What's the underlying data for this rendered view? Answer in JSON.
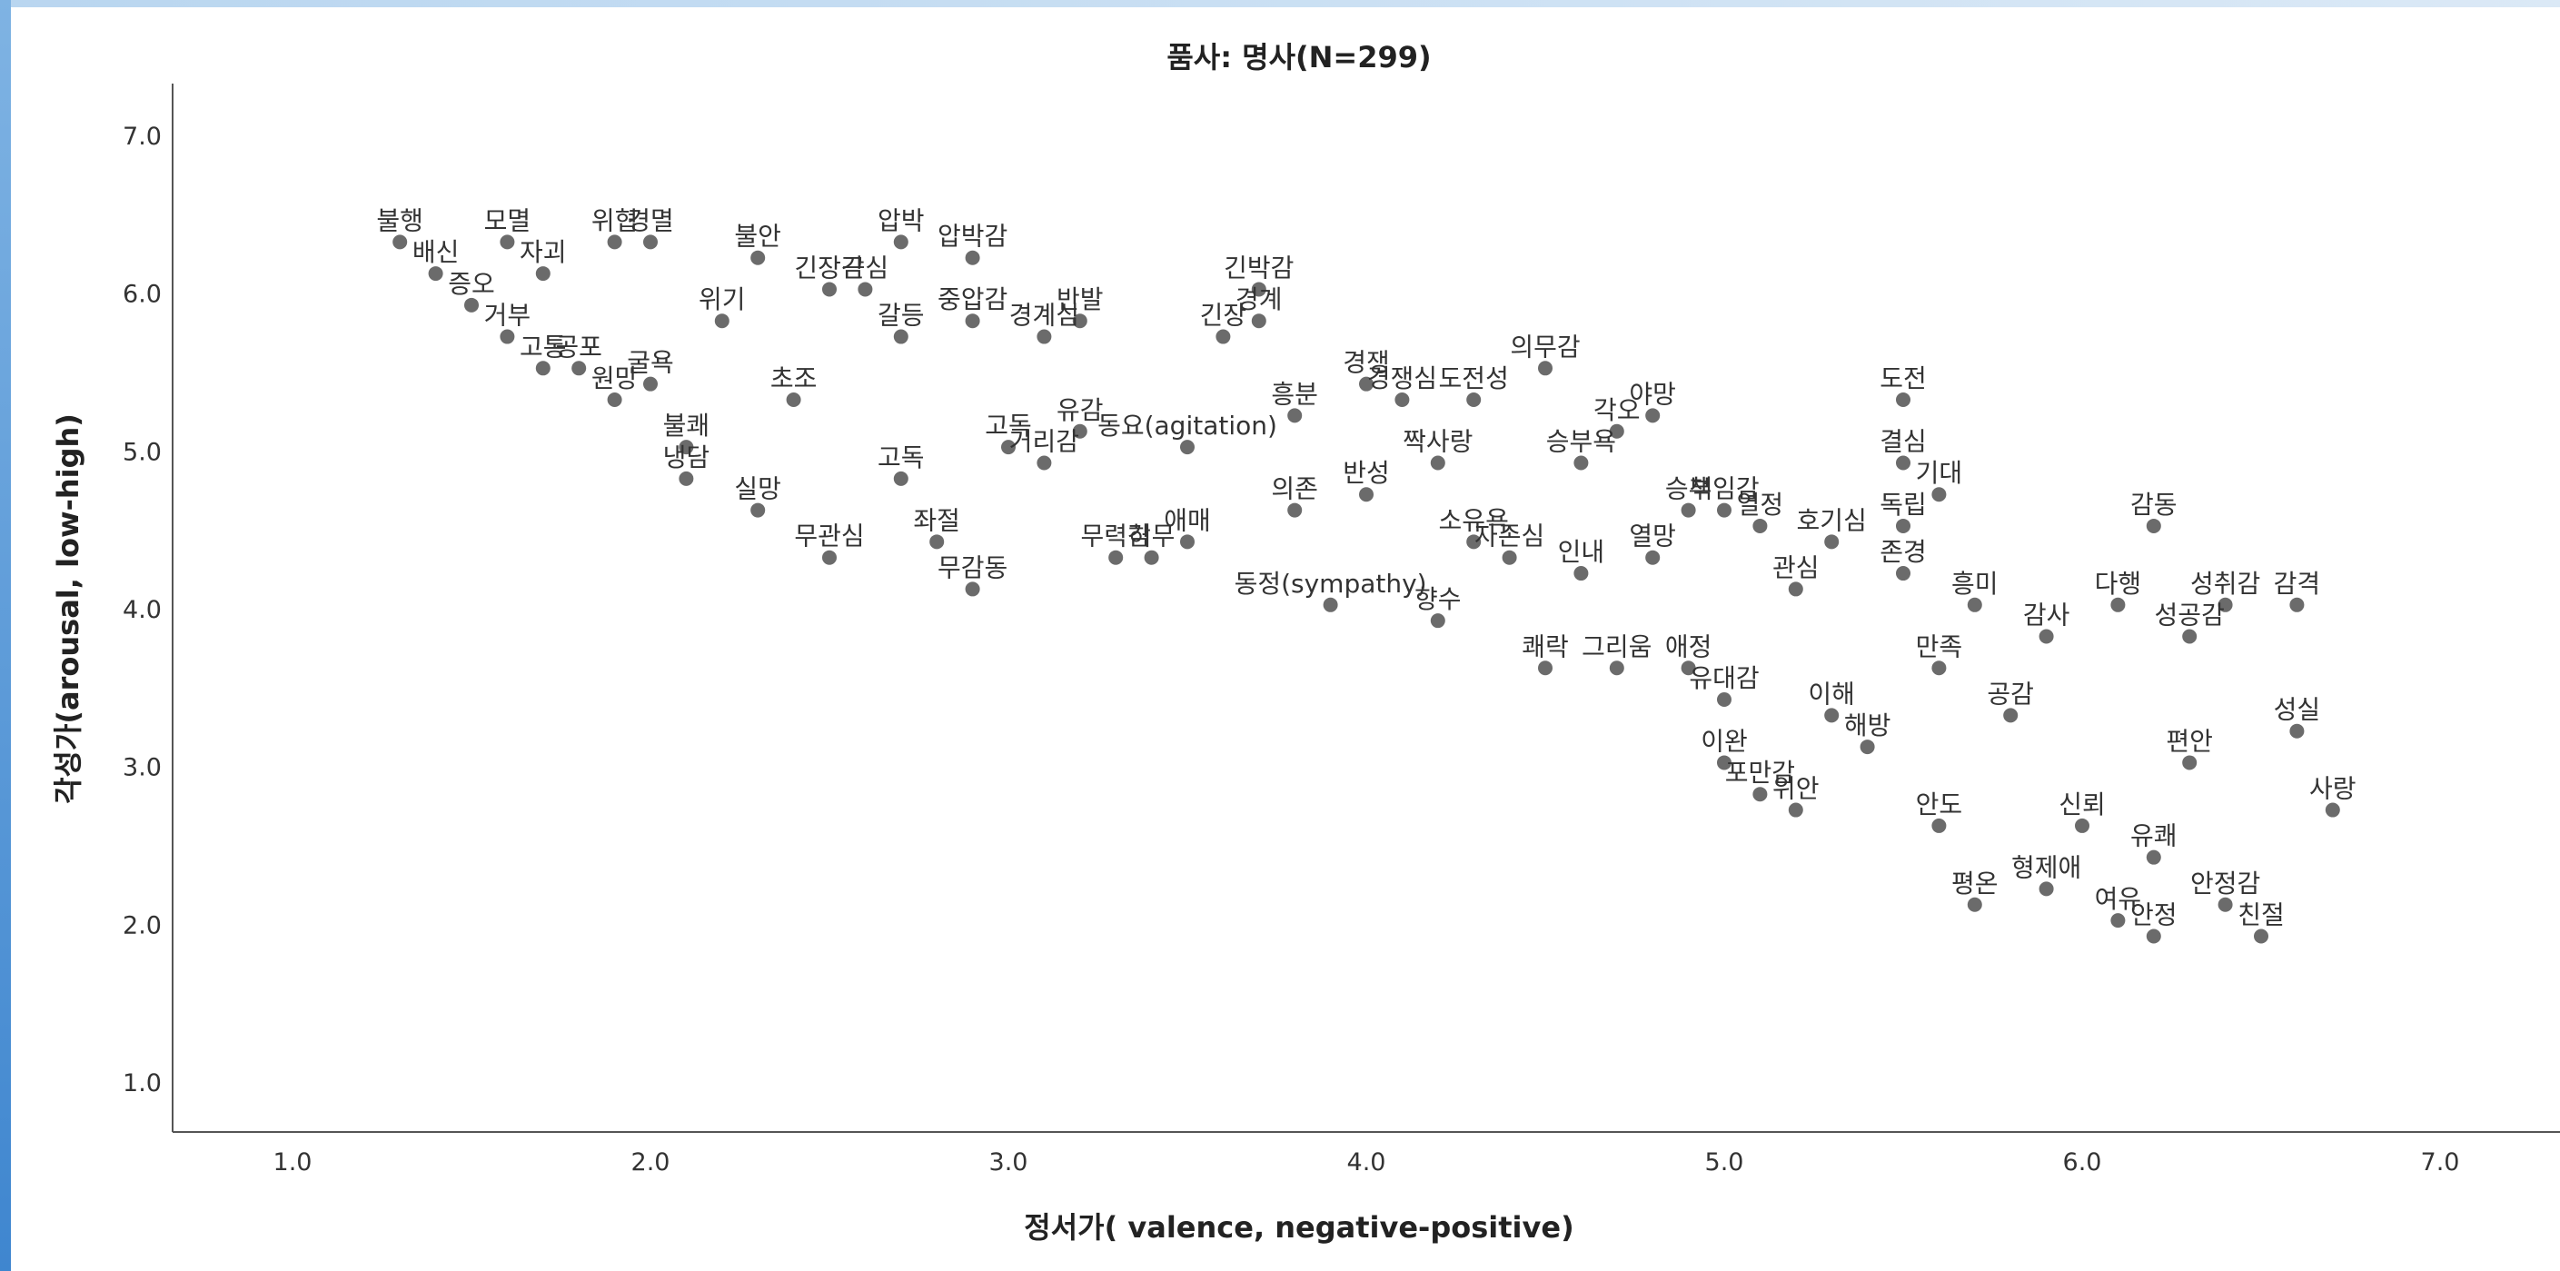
{
  "chart_data": {
    "type": "scatter",
    "title": "품사: 명사(N=299)",
    "xlabel": "정서가( valence, negative-positive)",
    "ylabel": "각성가(arousal, low-high)",
    "xlim": [
      0.67,
      7.61
    ],
    "ylim": [
      0.67,
      7.33
    ],
    "xticks": [
      "1.0",
      "2.0",
      "3.0",
      "4.0",
      "5.0",
      "6.0",
      "7.0"
    ],
    "yticks": [
      "1.0",
      "2.0",
      "3.0",
      "4.0",
      "5.0",
      "6.0",
      "7.0"
    ],
    "marker_color": "#6b6b6b",
    "grid": false,
    "points": [
      {
        "x": 1.3,
        "y": 6.33,
        "label": "불행"
      },
      {
        "x": 1.4,
        "y": 6.13,
        "label": "배신"
      },
      {
        "x": 1.5,
        "y": 5.93,
        "label": "증오"
      },
      {
        "x": 1.6,
        "y": 5.73,
        "label": "거부"
      },
      {
        "x": 1.6,
        "y": 6.33,
        "label": "모멸"
      },
      {
        "x": 1.7,
        "y": 6.13,
        "label": "자괴"
      },
      {
        "x": 1.7,
        "y": 5.53,
        "label": "고통"
      },
      {
        "x": 1.8,
        "y": 5.53,
        "label": "공포"
      },
      {
        "x": 1.9,
        "y": 6.33,
        "label": "위협"
      },
      {
        "x": 1.9,
        "y": 5.33,
        "label": "원망"
      },
      {
        "x": 2.0,
        "y": 6.33,
        "label": "경멸"
      },
      {
        "x": 2.0,
        "y": 5.43,
        "label": "굴욕"
      },
      {
        "x": 2.1,
        "y": 5.03,
        "label": "불쾌"
      },
      {
        "x": 2.1,
        "y": 4.83,
        "label": "냉담"
      },
      {
        "x": 2.2,
        "y": 5.83,
        "label": "위기"
      },
      {
        "x": 2.3,
        "y": 6.23,
        "label": "불안"
      },
      {
        "x": 2.3,
        "y": 4.63,
        "label": "실망"
      },
      {
        "x": 2.4,
        "y": 5.33,
        "label": "초조"
      },
      {
        "x": 2.5,
        "y": 6.03,
        "label": "긴장감"
      },
      {
        "x": 2.5,
        "y": 4.33,
        "label": "무관심"
      },
      {
        "x": 2.6,
        "y": 6.03,
        "label": "근심"
      },
      {
        "x": 2.7,
        "y": 5.73,
        "label": "갈등"
      },
      {
        "x": 2.7,
        "y": 4.83,
        "label": "고독"
      },
      {
        "x": 2.7,
        "y": 6.33,
        "label": "압박"
      },
      {
        "x": 2.8,
        "y": 4.43,
        "label": "좌절"
      },
      {
        "x": 2.9,
        "y": 6.23,
        "label": "압박감"
      },
      {
        "x": 2.9,
        "y": 4.13,
        "label": "무감동"
      },
      {
        "x": 2.9,
        "y": 5.83,
        "label": "중압감"
      },
      {
        "x": 3.0,
        "y": 5.03,
        "label": "고독"
      },
      {
        "x": 3.1,
        "y": 4.93,
        "label": "거리감"
      },
      {
        "x": 3.1,
        "y": 5.73,
        "label": "경계심"
      },
      {
        "x": 3.2,
        "y": 5.13,
        "label": "유감"
      },
      {
        "x": 3.2,
        "y": 5.83,
        "label": "반발"
      },
      {
        "x": 3.3,
        "y": 4.33,
        "label": "무력감"
      },
      {
        "x": 3.4,
        "y": 4.33,
        "label": "허무"
      },
      {
        "x": 3.5,
        "y": 4.43,
        "label": "애매"
      },
      {
        "x": 3.5,
        "y": 5.03,
        "label": "동요(agitation)"
      },
      {
        "x": 3.6,
        "y": 5.73,
        "label": "긴장"
      },
      {
        "x": 3.7,
        "y": 5.83,
        "label": "경계"
      },
      {
        "x": 3.7,
        "y": 6.03,
        "label": "긴박감"
      },
      {
        "x": 3.8,
        "y": 5.23,
        "label": "흥분"
      },
      {
        "x": 3.8,
        "y": 4.63,
        "label": "의존"
      },
      {
        "x": 3.9,
        "y": 4.03,
        "label": "동정(sympathy)"
      },
      {
        "x": 4.0,
        "y": 4.73,
        "label": "반성"
      },
      {
        "x": 4.0,
        "y": 5.43,
        "label": "경쟁"
      },
      {
        "x": 4.1,
        "y": 5.33,
        "label": "경쟁심"
      },
      {
        "x": 4.2,
        "y": 4.93,
        "label": "짝사랑"
      },
      {
        "x": 4.2,
        "y": 3.93,
        "label": "향수"
      },
      {
        "x": 4.3,
        "y": 5.33,
        "label": "도전성"
      },
      {
        "x": 4.3,
        "y": 4.43,
        "label": "소유욕"
      },
      {
        "x": 4.4,
        "y": 4.33,
        "label": "자존심"
      },
      {
        "x": 4.5,
        "y": 5.53,
        "label": "의무감"
      },
      {
        "x": 4.5,
        "y": 3.63,
        "label": "쾌락"
      },
      {
        "x": 4.6,
        "y": 4.93,
        "label": "승부욕"
      },
      {
        "x": 4.6,
        "y": 4.23,
        "label": "인내"
      },
      {
        "x": 4.7,
        "y": 5.13,
        "label": "각오"
      },
      {
        "x": 4.7,
        "y": 3.63,
        "label": "그리움"
      },
      {
        "x": 4.8,
        "y": 5.23,
        "label": "야망"
      },
      {
        "x": 4.8,
        "y": 4.33,
        "label": "열망"
      },
      {
        "x": 4.9,
        "y": 4.63,
        "label": "승부"
      },
      {
        "x": 4.9,
        "y": 3.63,
        "label": "애정"
      },
      {
        "x": 5.0,
        "y": 4.63,
        "label": "책임감"
      },
      {
        "x": 5.0,
        "y": 3.43,
        "label": "유대감"
      },
      {
        "x": 5.0,
        "y": 3.03,
        "label": "이완"
      },
      {
        "x": 5.1,
        "y": 4.53,
        "label": "열정"
      },
      {
        "x": 5.1,
        "y": 2.83,
        "label": "포만감"
      },
      {
        "x": 5.2,
        "y": 4.13,
        "label": "관심"
      },
      {
        "x": 5.2,
        "y": 2.73,
        "label": "위안"
      },
      {
        "x": 5.3,
        "y": 4.43,
        "label": "호기심"
      },
      {
        "x": 5.3,
        "y": 3.33,
        "label": "이해"
      },
      {
        "x": 5.4,
        "y": 3.13,
        "label": "해방"
      },
      {
        "x": 5.5,
        "y": 5.33,
        "label": "도전"
      },
      {
        "x": 5.5,
        "y": 4.93,
        "label": "결심"
      },
      {
        "x": 5.5,
        "y": 4.53,
        "label": "독립"
      },
      {
        "x": 5.5,
        "y": 4.23,
        "label": "존경"
      },
      {
        "x": 5.6,
        "y": 4.73,
        "label": "기대"
      },
      {
        "x": 5.6,
        "y": 3.63,
        "label": "만족"
      },
      {
        "x": 5.6,
        "y": 2.63,
        "label": "안도"
      },
      {
        "x": 5.7,
        "y": 4.03,
        "label": "흥미"
      },
      {
        "x": 5.7,
        "y": 2.13,
        "label": "평온"
      },
      {
        "x": 5.8,
        "y": 3.33,
        "label": "공감"
      },
      {
        "x": 5.9,
        "y": 2.23,
        "label": "형제애"
      },
      {
        "x": 5.9,
        "y": 3.83,
        "label": "감사"
      },
      {
        "x": 6.0,
        "y": 2.63,
        "label": "신뢰"
      },
      {
        "x": 6.1,
        "y": 4.03,
        "label": "다행"
      },
      {
        "x": 6.1,
        "y": 2.03,
        "label": "여유"
      },
      {
        "x": 6.2,
        "y": 4.53,
        "label": "감동"
      },
      {
        "x": 6.2,
        "y": 2.43,
        "label": "유쾌"
      },
      {
        "x": 6.2,
        "y": 1.93,
        "label": "안정"
      },
      {
        "x": 6.3,
        "y": 3.83,
        "label": "성공감"
      },
      {
        "x": 6.3,
        "y": 3.03,
        "label": "편안"
      },
      {
        "x": 6.4,
        "y": 4.03,
        "label": "성취감"
      },
      {
        "x": 6.4,
        "y": 2.13,
        "label": "안정감"
      },
      {
        "x": 6.5,
        "y": 1.93,
        "label": "친절"
      },
      {
        "x": 6.6,
        "y": 4.03,
        "label": "감격"
      },
      {
        "x": 6.6,
        "y": 3.23,
        "label": "성실"
      },
      {
        "x": 6.7,
        "y": 2.73,
        "label": "사랑"
      }
    ]
  }
}
